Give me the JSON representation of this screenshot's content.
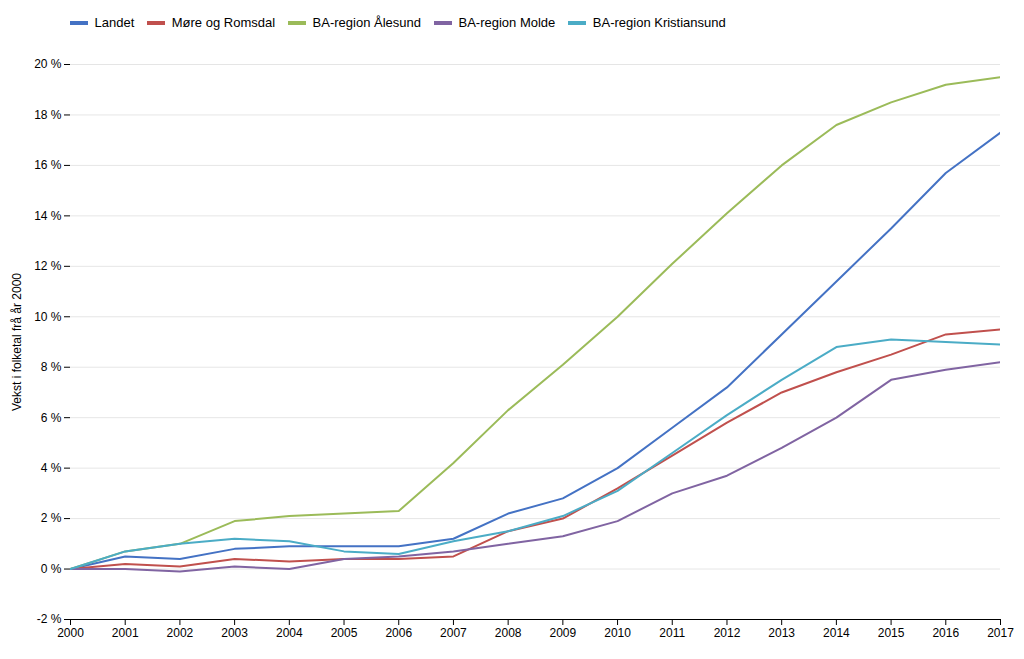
{
  "chart_data": {
    "type": "line",
    "ylabel": "Vekst i folketal frå år 2000",
    "x": [
      2000,
      2001,
      2002,
      2003,
      2004,
      2005,
      2006,
      2007,
      2008,
      2009,
      2010,
      2011,
      2012,
      2013,
      2014,
      2015,
      2016,
      2017
    ],
    "series": [
      {
        "name": "Landet",
        "color": "#4472c4",
        "values": [
          0.0,
          0.5,
          0.4,
          0.8,
          0.9,
          0.9,
          0.9,
          1.2,
          2.2,
          2.8,
          4.0,
          5.6,
          7.2,
          9.3,
          11.4,
          13.5,
          15.7,
          17.3
        ]
      },
      {
        "name": "Møre og Romsdal",
        "color": "#c0504d",
        "values": [
          0.0,
          0.2,
          0.1,
          0.4,
          0.3,
          0.4,
          0.4,
          0.5,
          1.5,
          2.0,
          3.2,
          4.5,
          5.8,
          7.0,
          7.8,
          8.5,
          9.3,
          9.5
        ]
      },
      {
        "name": "BA-region Ålesund",
        "color": "#9bbb59",
        "values": [
          0.0,
          0.7,
          1.0,
          1.9,
          2.1,
          2.2,
          2.3,
          4.2,
          6.3,
          8.1,
          10.0,
          12.1,
          14.1,
          16.0,
          17.6,
          18.5,
          19.2,
          19.5
        ]
      },
      {
        "name": "BA-region Molde",
        "color": "#8064a2",
        "values": [
          0.0,
          0.0,
          -0.1,
          0.1,
          0.0,
          0.4,
          0.5,
          0.7,
          1.0,
          1.3,
          1.9,
          3.0,
          3.7,
          4.8,
          6.0,
          7.5,
          7.9,
          8.2
        ]
      },
      {
        "name": "BA-region Kristiansund",
        "color": "#4bacc6",
        "values": [
          0.0,
          0.7,
          1.0,
          1.2,
          1.1,
          0.7,
          0.6,
          1.1,
          1.5,
          2.1,
          3.1,
          4.6,
          6.1,
          7.5,
          8.8,
          9.1,
          9.0,
          8.9
        ]
      }
    ],
    "xlim": [
      2000,
      2017
    ],
    "xticks": [
      2000,
      2001,
      2002,
      2003,
      2004,
      2005,
      2006,
      2007,
      2008,
      2009,
      2010,
      2011,
      2012,
      2013,
      2014,
      2015,
      2016,
      2017
    ],
    "ylim": [
      -2,
      20
    ],
    "yticks": [
      {
        "value": -2,
        "label": "-2 %"
      },
      {
        "value": 0,
        "label": "0 %"
      },
      {
        "value": 2,
        "label": "2 %"
      },
      {
        "value": 4,
        "label": "4 %"
      },
      {
        "value": 6,
        "label": "6 %"
      },
      {
        "value": 8,
        "label": "8 %"
      },
      {
        "value": 10,
        "label": "10 %"
      },
      {
        "value": 12,
        "label": "12 %"
      },
      {
        "value": 14,
        "label": "14 %"
      },
      {
        "value": 16,
        "label": "16 %"
      },
      {
        "value": 18,
        "label": "18 %"
      },
      {
        "value": 20,
        "label": "20 %"
      }
    ],
    "grid": true,
    "legend": "upper left"
  }
}
